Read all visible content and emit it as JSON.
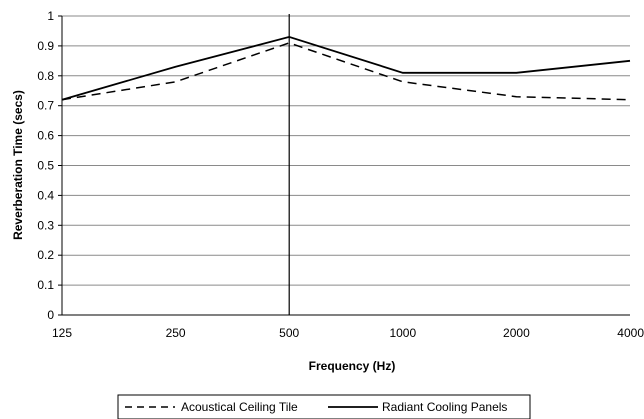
{
  "chart_data": {
    "type": "line",
    "title": "",
    "xlabel": "Frequency (Hz)",
    "ylabel": "Reverberation Time (secs)",
    "categories": [
      "125",
      "250",
      "500",
      "1000",
      "2000",
      "4000"
    ],
    "ylim": [
      0,
      1
    ],
    "yticks": [
      "0",
      "0.1",
      "0.2",
      "0.3",
      "0.4",
      "0.5",
      "0.6",
      "0.7",
      "0.8",
      "0.9",
      "1"
    ],
    "grid": true,
    "legend_position": "bottom",
    "series": [
      {
        "name": "Acoustical Ceiling Tile",
        "style": "dashed",
        "color": "#000000",
        "values": [
          0.72,
          0.78,
          0.91,
          0.78,
          0.73,
          0.72
        ]
      },
      {
        "name": "Radiant Cooling Panels",
        "style": "solid",
        "color": "#000000",
        "values": [
          0.72,
          0.83,
          0.93,
          0.81,
          0.81,
          0.85
        ]
      }
    ],
    "annotations": [
      {
        "type": "vertical-line",
        "at": "500"
      }
    ]
  }
}
